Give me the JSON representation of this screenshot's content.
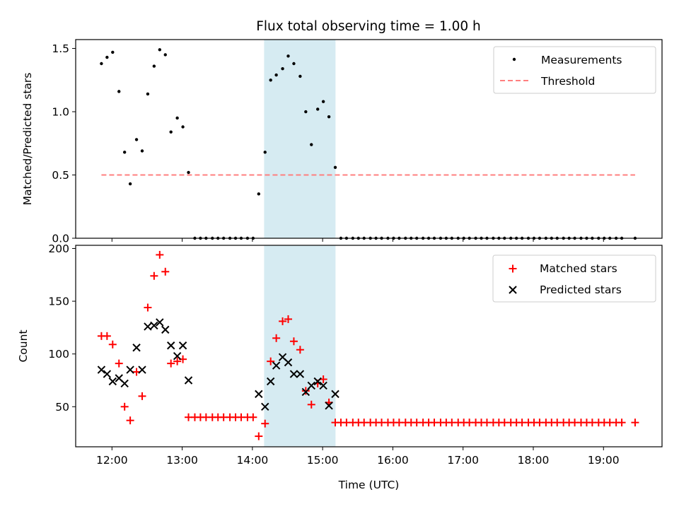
{
  "figure_title": "Flux total observing time = 1.00 h",
  "colors": {
    "shade": "#add8e6",
    "threshold": "#ff7f7f",
    "measurements": "#000000",
    "matched": "#ff0000",
    "predicted": "#000000"
  },
  "chart_data": [
    {
      "type": "scatter",
      "title": "Flux total observing time = 1.00 h",
      "xlabel": "",
      "ylabel": "Matched/Predicted stars",
      "xlim": [
        11.4833,
        19.8333
      ],
      "ylim": [
        0,
        1.57
      ],
      "yticks": [
        0,
        0.5,
        1.0,
        1.5
      ],
      "ytick_labels": [
        "0.0",
        "0.5",
        "1.0",
        "1.5"
      ],
      "xticks": [
        12,
        13,
        14,
        15,
        16,
        17,
        18,
        19
      ],
      "xtick_labels": [
        "12:00",
        "13:00",
        "14:00",
        "15:00",
        "16:00",
        "17:00",
        "18:00",
        "19:00"
      ],
      "shaded_region": [
        14.1667,
        15.1833
      ],
      "grid": false,
      "legend_position": "top-right",
      "legend": [
        "Measurements",
        "Threshold"
      ],
      "threshold": {
        "name": "Threshold",
        "y": 0.5,
        "x": [
          11.85,
          19.45
        ],
        "style": "dashed"
      },
      "measurements": {
        "name": "Measurements",
        "x": [
          11.85,
          11.93,
          12.01,
          12.1,
          12.18,
          12.26,
          12.35,
          12.43,
          12.51,
          12.6,
          12.68,
          12.76,
          12.84,
          12.93,
          13.01,
          13.09,
          13.18,
          13.26,
          13.34,
          13.43,
          13.51,
          13.59,
          13.68,
          13.76,
          13.84,
          13.93,
          14.01,
          14.09,
          14.18,
          14.26,
          14.34,
          14.43,
          14.51,
          14.59,
          14.68,
          14.76,
          14.84,
          14.93,
          15.01,
          15.09,
          15.18,
          15.26,
          15.34,
          15.43,
          15.51,
          15.59,
          15.68,
          15.76,
          15.84,
          15.93,
          16.01,
          16.09,
          16.18,
          16.26,
          16.34,
          16.43,
          16.51,
          16.59,
          16.68,
          16.76,
          16.84,
          16.93,
          17.01,
          17.09,
          17.18,
          17.26,
          17.34,
          17.43,
          17.51,
          17.59,
          17.68,
          17.76,
          17.84,
          17.93,
          18.01,
          18.09,
          18.18,
          18.26,
          18.34,
          18.43,
          18.51,
          18.59,
          18.68,
          18.76,
          18.84,
          18.93,
          19.01,
          19.09,
          19.18,
          19.26,
          19.45
        ],
        "y": [
          1.38,
          1.43,
          1.47,
          1.16,
          0.68,
          0.43,
          0.78,
          0.69,
          1.14,
          1.36,
          1.49,
          1.45,
          0.84,
          0.95,
          0.88,
          0.52,
          0,
          0,
          0,
          0,
          0,
          0,
          0,
          0,
          0,
          0,
          0,
          0.35,
          0.68,
          1.25,
          1.29,
          1.34,
          1.44,
          1.38,
          1.28,
          1.0,
          0.74,
          1.02,
          1.08,
          0.96,
          0.56,
          0,
          0,
          0,
          0,
          0,
          0,
          0,
          0,
          0,
          0,
          0,
          0,
          0,
          0,
          0,
          0,
          0,
          0,
          0,
          0,
          0,
          0,
          0,
          0,
          0,
          0,
          0,
          0,
          0,
          0,
          0,
          0,
          0,
          0,
          0,
          0,
          0,
          0,
          0,
          0,
          0,
          0,
          0,
          0,
          0,
          0,
          0,
          0,
          0,
          0
        ]
      }
    },
    {
      "type": "scatter",
      "title": "",
      "xlabel": "Time (UTC)",
      "ylabel": "Count",
      "xlim": [
        11.4833,
        19.8333
      ],
      "ylim": [
        12,
        203
      ],
      "yticks": [
        50,
        100,
        150,
        200
      ],
      "ytick_labels": [
        "50",
        "100",
        "150",
        "200"
      ],
      "xticks": [
        12,
        13,
        14,
        15,
        16,
        17,
        18,
        19
      ],
      "xtick_labels": [
        "12:00",
        "13:00",
        "14:00",
        "15:00",
        "16:00",
        "17:00",
        "18:00",
        "19:00"
      ],
      "shaded_region": [
        14.1667,
        15.1833
      ],
      "grid": false,
      "legend_position": "top-right",
      "legend": [
        "Matched stars",
        "Predicted stars"
      ],
      "series": [
        {
          "name": "Matched stars",
          "marker": "+",
          "x": [
            11.85,
            11.93,
            12.01,
            12.1,
            12.18,
            12.26,
            12.35,
            12.43,
            12.51,
            12.6,
            12.68,
            12.76,
            12.84,
            12.93,
            13.01,
            13.09,
            13.18,
            13.26,
            13.34,
            13.43,
            13.51,
            13.59,
            13.68,
            13.76,
            13.84,
            13.93,
            14.01,
            14.09,
            14.18,
            14.26,
            14.34,
            14.43,
            14.51,
            14.59,
            14.68,
            14.76,
            14.84,
            14.93,
            15.01,
            15.09,
            15.18,
            15.26,
            15.34,
            15.43,
            15.51,
            15.59,
            15.68,
            15.76,
            15.84,
            15.93,
            16.01,
            16.09,
            16.18,
            16.26,
            16.34,
            16.43,
            16.51,
            16.59,
            16.68,
            16.76,
            16.84,
            16.93,
            17.01,
            17.09,
            17.18,
            17.26,
            17.34,
            17.43,
            17.51,
            17.59,
            17.68,
            17.76,
            17.84,
            17.93,
            18.01,
            18.09,
            18.18,
            18.26,
            18.34,
            18.43,
            18.51,
            18.59,
            18.68,
            18.76,
            18.84,
            18.93,
            19.01,
            19.09,
            19.18,
            19.26,
            19.45
          ],
          "y": [
            117,
            117,
            109,
            91,
            50,
            37,
            83,
            60,
            144,
            174,
            194,
            178,
            91,
            93,
            95,
            40,
            40,
            40,
            40,
            40,
            40,
            40,
            40,
            40,
            40,
            40,
            40,
            22,
            34,
            93,
            115,
            131,
            133,
            112,
            104,
            65,
            52,
            72,
            76,
            54,
            35,
            35,
            35,
            35,
            35,
            35,
            35,
            35,
            35,
            35,
            35,
            35,
            35,
            35,
            35,
            35,
            35,
            35,
            35,
            35,
            35,
            35,
            35,
            35,
            35,
            35,
            35,
            35,
            35,
            35,
            35,
            35,
            35,
            35,
            35,
            35,
            35,
            35,
            35,
            35,
            35,
            35,
            35,
            35,
            35,
            35,
            35,
            35,
            35,
            35,
            35
          ]
        },
        {
          "name": "Predicted stars",
          "marker": "x",
          "x": [
            11.85,
            11.93,
            12.01,
            12.1,
            12.18,
            12.26,
            12.35,
            12.43,
            12.51,
            12.6,
            12.68,
            12.76,
            12.84,
            12.93,
            13.01,
            13.09,
            14.09,
            14.18,
            14.26,
            14.34,
            14.43,
            14.51,
            14.59,
            14.68,
            14.76,
            14.84,
            14.93,
            15.01,
            15.09,
            15.18
          ],
          "y": [
            85,
            81,
            74,
            77,
            72,
            85,
            106,
            85,
            126,
            127,
            130,
            123,
            108,
            98,
            108,
            75,
            62,
            50,
            74,
            89,
            97,
            92,
            81,
            81,
            64,
            70,
            74,
            70,
            51,
            62
          ]
        }
      ]
    }
  ]
}
